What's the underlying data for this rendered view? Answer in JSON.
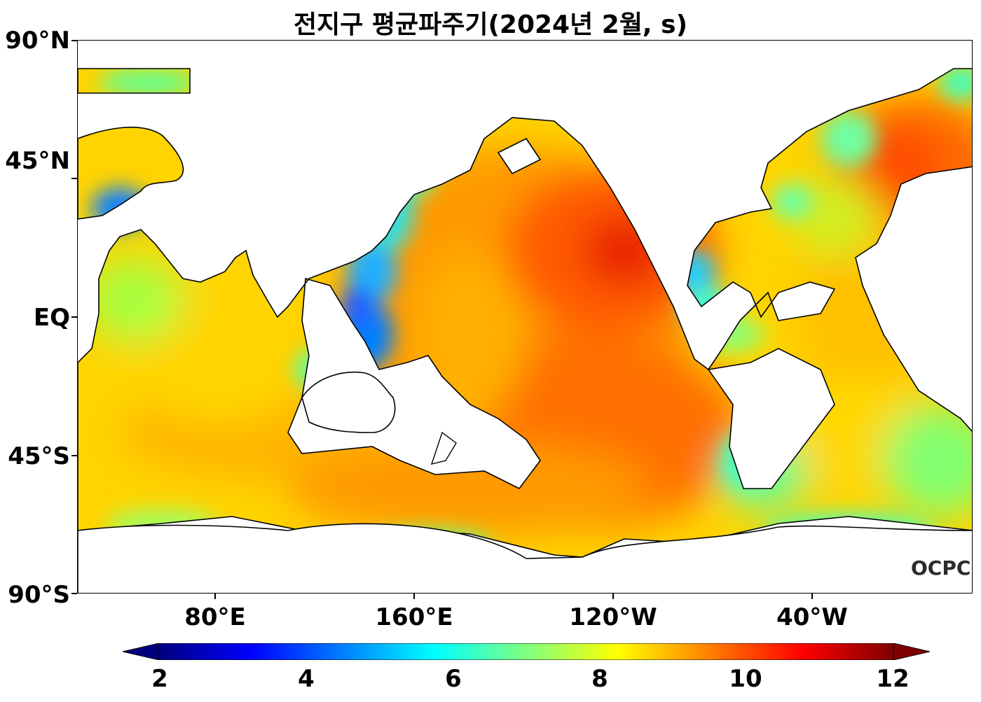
{
  "title": "전지구 평균파주기(2024년 2월, s)",
  "y_axis": {
    "ticks": [
      {
        "label": "90°N",
        "lat": 90
      },
      {
        "label": "45°N",
        "lat": 45
      },
      {
        "label": "EQ",
        "lat": 0
      },
      {
        "label": "45°S",
        "lat": -45
      },
      {
        "label": "90°S",
        "lat": -90
      }
    ]
  },
  "x_axis": {
    "ticks": [
      {
        "label": "80°E",
        "lon": 80
      },
      {
        "label": "160°E",
        "lon": 160
      },
      {
        "label": "120°W",
        "lon": 240
      },
      {
        "label": "40°W",
        "lon": 320
      }
    ]
  },
  "colorbar": {
    "min": 2,
    "max": 12,
    "ticks": [
      {
        "label": "2",
        "value": 2
      },
      {
        "label": "4",
        "value": 4
      },
      {
        "label": "6",
        "value": 6
      },
      {
        "label": "8",
        "value": 8
      },
      {
        "label": "10",
        "value": 10
      },
      {
        "label": "12",
        "value": 12
      }
    ],
    "colormap": "jet",
    "extend": "both",
    "colors": [
      "#00007f",
      "#0000ff",
      "#007fff",
      "#00ffff",
      "#7fff7f",
      "#ffff00",
      "#ff7f00",
      "#ff0000",
      "#7f0000"
    ]
  },
  "logo_text": "OCPC",
  "colors": {
    "land": "#ffffff",
    "coast": "#000000"
  }
}
